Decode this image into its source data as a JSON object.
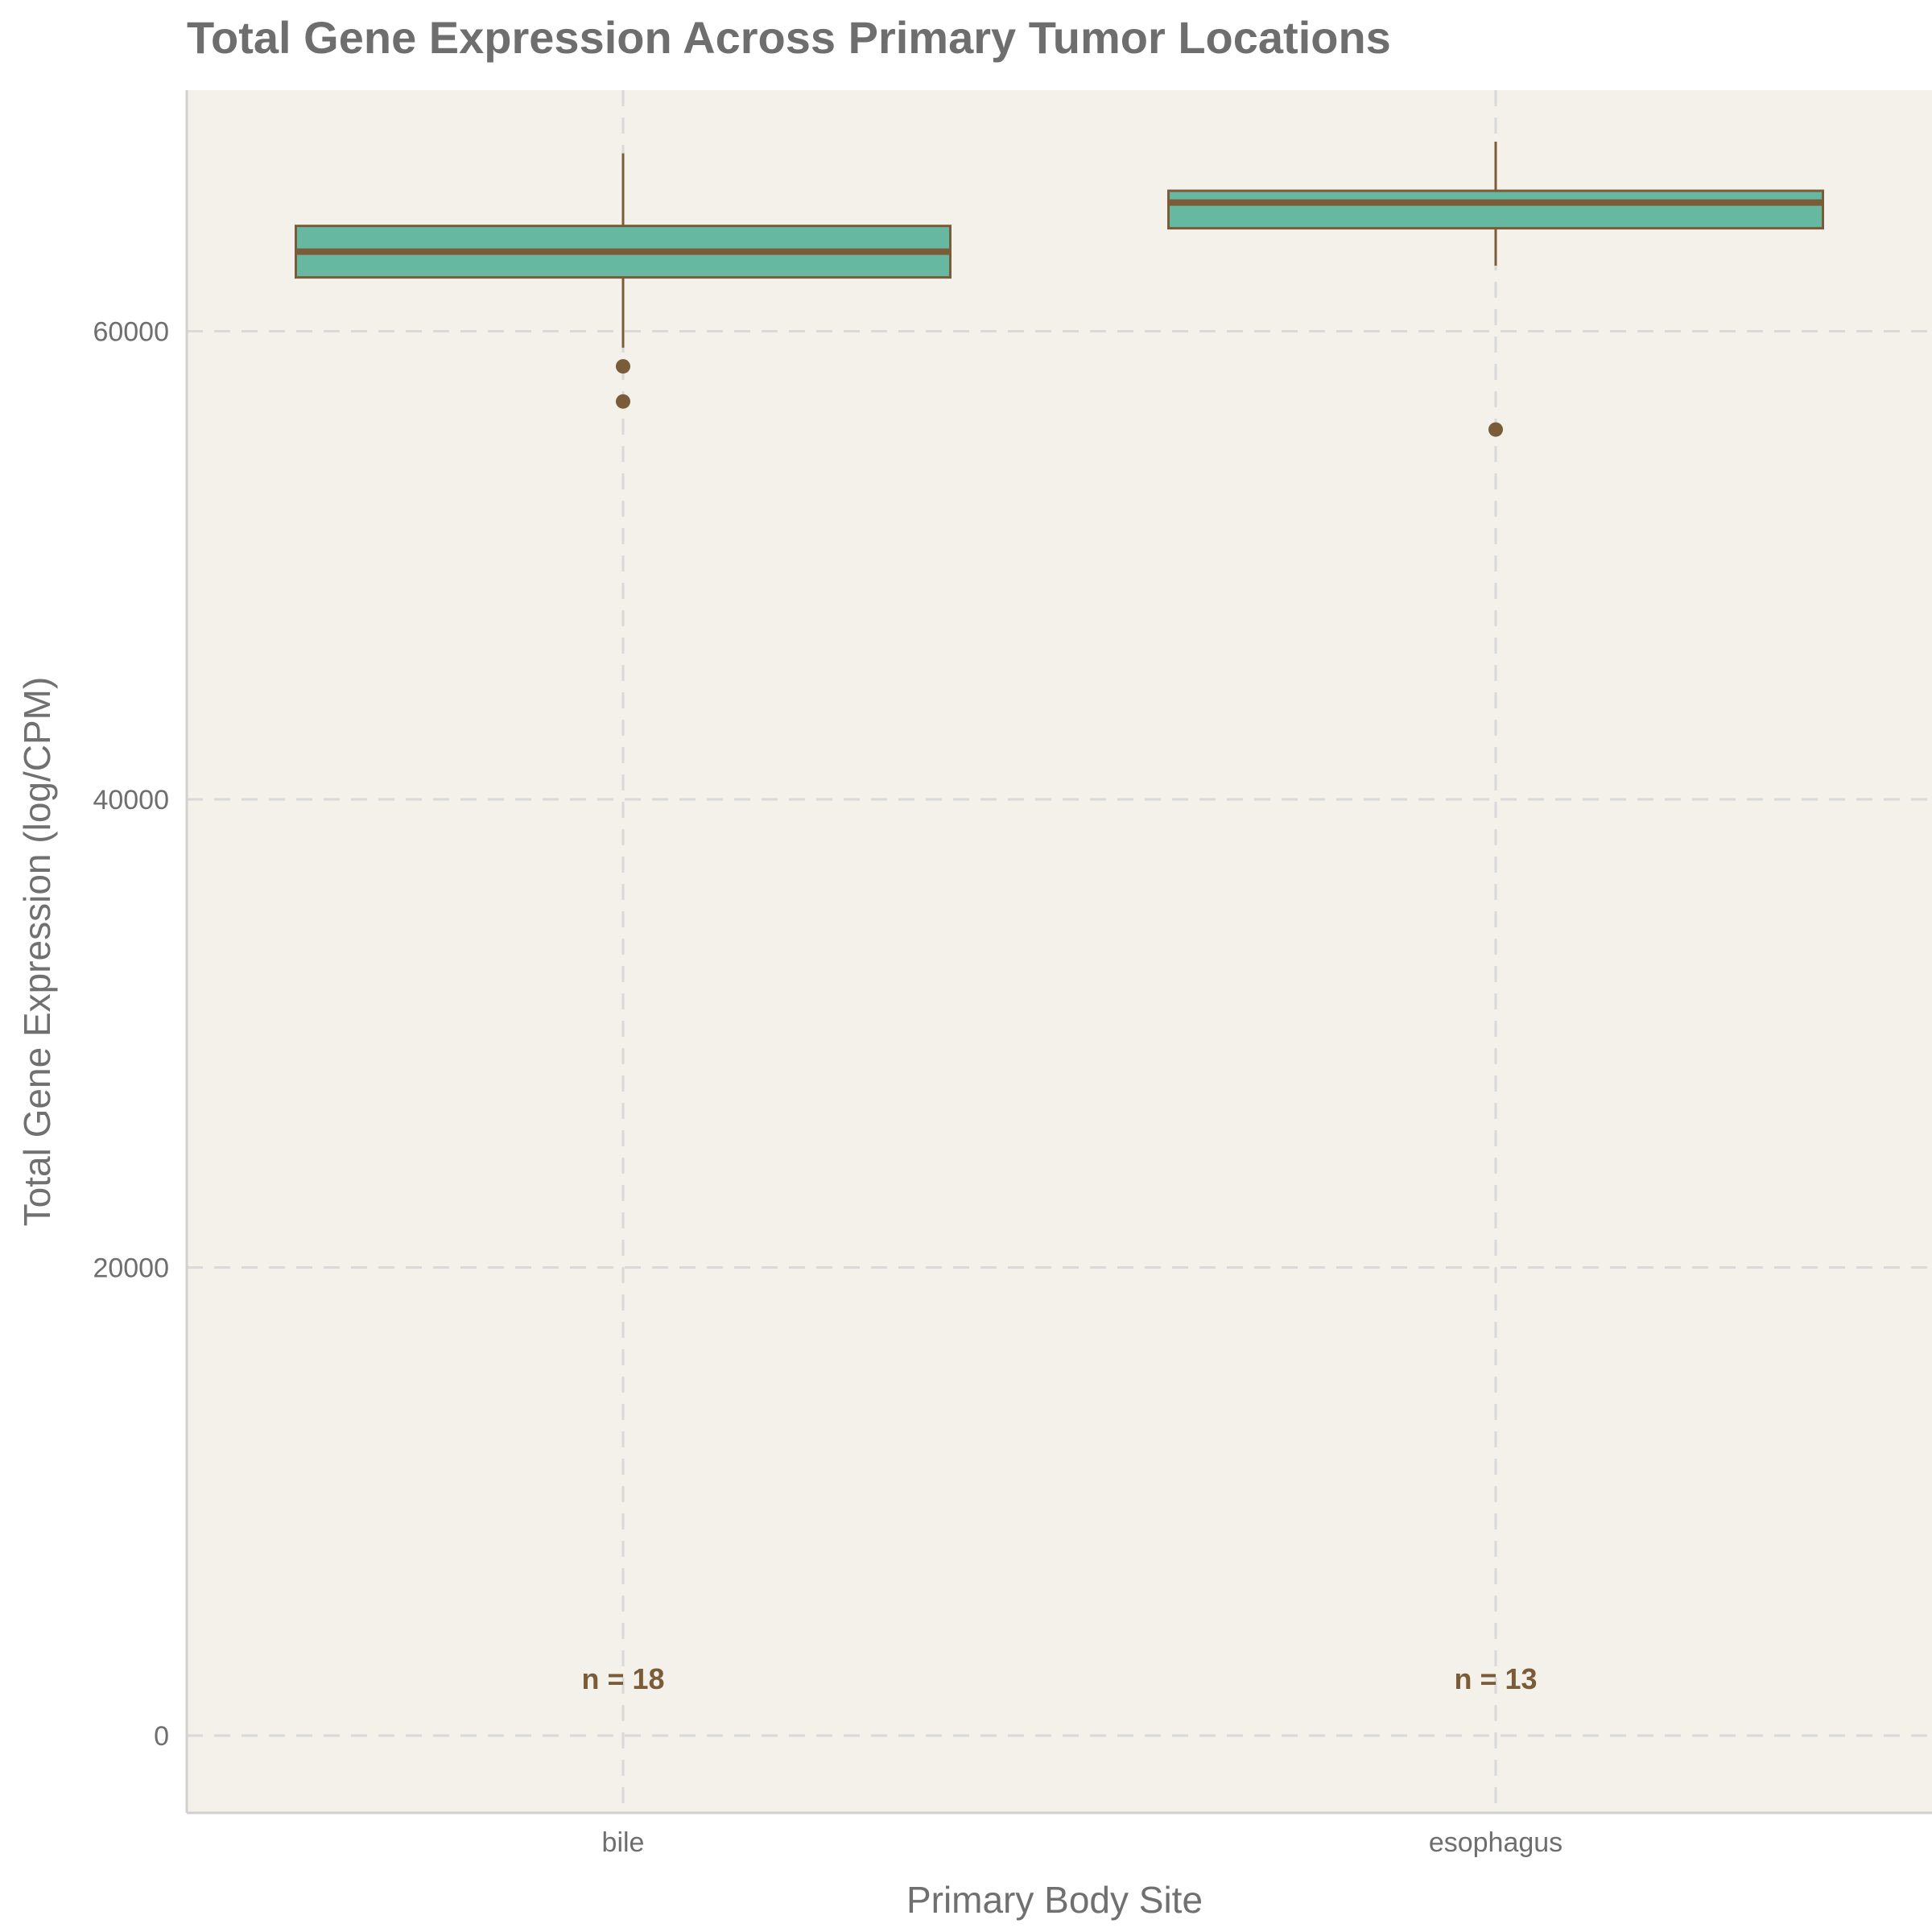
{
  "chart_data": {
    "type": "box",
    "title": "Total Gene Expression Across Primary Tumor Locations",
    "xlabel": "Primary Body Site",
    "ylabel": "Total Gene Expression (log/CPM)",
    "ylim": [
      -3300,
      70300
    ],
    "yticks": [
      0,
      20000,
      40000,
      60000
    ],
    "categories": [
      "bile",
      "esophagus"
    ],
    "boxes": [
      {
        "category": "bile",
        "whisker_low": 59300,
        "q1": 62300,
        "median": 63400,
        "q3": 64500,
        "whisker_high": 67600,
        "outliers": [
          58500,
          57000
        ],
        "n_label": "n = 18"
      },
      {
        "category": "esophagus",
        "whisker_low": 62800,
        "q1": 64400,
        "median": 65500,
        "q3": 66000,
        "whisker_high": 68100,
        "outliers": [
          55800
        ],
        "n_label": "n = 13"
      }
    ],
    "grid": true,
    "colors": {
      "panel": "#f4f0ea",
      "box_fill": "#66b8a0",
      "box_stroke": "#7a5c38",
      "grid": "#d9d9d9",
      "axis": "#d0d0d0"
    }
  }
}
